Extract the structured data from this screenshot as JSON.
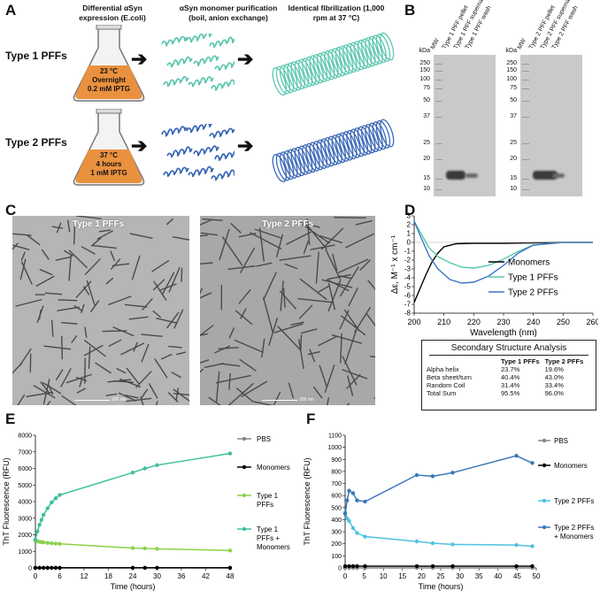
{
  "panels": {
    "A": "A",
    "B": "B",
    "C": "C",
    "D": "D",
    "E": "E",
    "F": "F"
  },
  "panelA": {
    "headers": [
      "Differential αSyn expression (E.coli)",
      "αSyn monomer purification (boil, anion exchange)",
      "Identical fibrilization (1,000 rpm at 37 °C)"
    ],
    "rows": [
      {
        "label": "Type 1 PFFs",
        "flask": [
          "23 °C",
          "Overnight",
          "0.2 mM IPTG"
        ],
        "color": "#5cc7b0"
      },
      {
        "label": "Type 2 PFFs",
        "flask": [
          "37 °C",
          "4 hours",
          "1 mM IPTG"
        ],
        "color": "#3a67b6"
      }
    ]
  },
  "panelB": {
    "kda_label": "kDa",
    "ladder": [
      "250",
      "150",
      "100",
      "75",
      "50",
      "37",
      "25",
      "20",
      "15",
      "10"
    ],
    "gel1_lanes": [
      "MW",
      "Type 1 PFF pellet",
      "Type 1 PFF supernatant",
      "Type 1 PFF wash"
    ],
    "gel2_lanes": [
      "MW",
      "Type 2 PFF pellet",
      "Type 2 PFF supernatant",
      "Type 2 PFF wash"
    ]
  },
  "panelC": {
    "left_label": "Type 1 PFFs",
    "right_label": "Type 2 PFFs",
    "scale": "200 nm"
  },
  "panelD": {
    "chart_data": {
      "type": "line",
      "xlabel": "Wavelength (nm)",
      "ylabel": "Δε, M⁻¹ x cm⁻¹",
      "xlim": [
        200,
        260
      ],
      "ylim": [
        -8,
        3
      ],
      "xticks": [
        "200",
        "210",
        "220",
        "230",
        "240",
        "250",
        "260"
      ],
      "yticks": [
        "3",
        "2",
        "1",
        "0",
        "-1",
        "-2",
        "-3",
        "-4",
        "-5",
        "-6",
        "-7",
        "-8"
      ],
      "series": [
        {
          "name": "Monomers",
          "color": "#000000",
          "x": [
            200,
            202,
            204,
            206,
            208,
            210,
            214,
            220,
            230,
            240,
            250,
            260
          ],
          "y": [
            -6.8,
            -5.2,
            -3.6,
            -2.2,
            -1.2,
            -0.5,
            -0.15,
            -0.1,
            -0.1,
            -0.05,
            0,
            0
          ]
        },
        {
          "name": "Type 1 PFFs",
          "color": "#5cc7b0",
          "x": [
            200,
            202,
            205,
            208,
            212,
            216,
            220,
            225,
            230,
            235,
            240,
            250,
            260
          ],
          "y": [
            2.4,
            1.2,
            -0.6,
            -1.6,
            -2.3,
            -2.8,
            -2.9,
            -2.6,
            -1.9,
            -1.0,
            -0.3,
            0,
            0
          ]
        },
        {
          "name": "Type 2 PFFs",
          "color": "#3a77c3",
          "x": [
            200,
            202,
            205,
            208,
            212,
            216,
            220,
            225,
            230,
            235,
            240,
            250,
            260
          ],
          "y": [
            2.4,
            0.8,
            -1.5,
            -3.0,
            -4.2,
            -4.6,
            -4.5,
            -3.8,
            -2.6,
            -1.2,
            -0.3,
            0,
            0
          ]
        }
      ]
    },
    "table": {
      "title": "Secondary Structure Analysis",
      "cols": [
        "",
        "Type 1 PFFs",
        "Type 2 PFFs"
      ],
      "rows": [
        [
          "Alpha helix",
          "23.7%",
          "19.6%"
        ],
        [
          "Beta sheet/turn",
          "40.4%",
          "43.0%"
        ],
        [
          "Random Coil",
          "31.4%",
          "33.4%"
        ],
        [
          "Total Sum",
          "95.5%",
          "96.0%"
        ]
      ]
    }
  },
  "panelE": {
    "chart_data": {
      "type": "line",
      "xlabel": "Time (hours)",
      "ylabel": "ThT Fluorescence (RFU)",
      "xlim": [
        0,
        48
      ],
      "ylim": [
        0,
        8000
      ],
      "xticks": [
        "0",
        "6",
        "12",
        "18",
        "24",
        "30",
        "36",
        "42",
        "48"
      ],
      "yticks": [
        "0",
        "1000",
        "2000",
        "3000",
        "4000",
        "5000",
        "6000",
        "7000",
        "8000"
      ],
      "series": [
        {
          "name": "PBS",
          "color": "#888888",
          "x": [
            0,
            1,
            2,
            3,
            4,
            5,
            6,
            24,
            27,
            30,
            48
          ],
          "y": [
            0,
            0,
            0,
            0,
            0,
            0,
            0,
            0,
            0,
            0,
            0
          ]
        },
        {
          "name": "Monomers",
          "color": "#000000",
          "x": [
            0,
            1,
            2,
            3,
            4,
            5,
            6,
            24,
            27,
            30,
            48
          ],
          "y": [
            10,
            10,
            10,
            10,
            10,
            10,
            10,
            10,
            10,
            10,
            10
          ]
        },
        {
          "name": "Type 1 PFFs",
          "color": "#8cd14a",
          "x": [
            0,
            0.5,
            1,
            1.5,
            2,
            3,
            4,
            5,
            6,
            24,
            27,
            30,
            48
          ],
          "y": [
            1650,
            1600,
            1580,
            1560,
            1540,
            1510,
            1490,
            1470,
            1450,
            1200,
            1180,
            1150,
            1050
          ]
        },
        {
          "name": "Type 1 PFFs + Monomers",
          "color": "#3fbf9f",
          "x": [
            0,
            0.5,
            1,
            1.5,
            2,
            3,
            4,
            5,
            6,
            24,
            27,
            30,
            48
          ],
          "y": [
            1700,
            2200,
            2600,
            2900,
            3200,
            3600,
            3950,
            4200,
            4400,
            5750,
            6000,
            6200,
            6900
          ]
        }
      ]
    },
    "legend": [
      [
        "PBS"
      ],
      [
        "Monomers"
      ],
      [
        "Type 1",
        "PFFs"
      ],
      [
        "Type 1",
        "PFFs +",
        "Monomers"
      ]
    ]
  },
  "panelF": {
    "chart_data": {
      "type": "line",
      "xlabel": "Time (hours)",
      "ylabel": "ThT Fluorescence (RFU)",
      "xlim": [
        0,
        48
      ],
      "ylim": [
        0,
        1100
      ],
      "xticks": [
        "0",
        "5",
        "10",
        "15",
        "20",
        "25",
        "30",
        "35",
        "40",
        "45",
        "50"
      ],
      "yticks": [
        "0",
        "100",
        "200",
        "300",
        "400",
        "500",
        "600",
        "700",
        "800",
        "900",
        "1000",
        "1100"
      ],
      "series": [
        {
          "name": "PBS",
          "color": "#888888",
          "x": [
            0,
            1,
            2,
            3,
            5,
            18,
            22,
            27,
            43,
            47
          ],
          "y": [
            0,
            0,
            0,
            0,
            0,
            0,
            0,
            0,
            0,
            0
          ]
        },
        {
          "name": "Monomers",
          "color": "#000000",
          "x": [
            0,
            1,
            2,
            3,
            5,
            18,
            22,
            27,
            43,
            47
          ],
          "y": [
            15,
            15,
            15,
            15,
            15,
            15,
            15,
            15,
            15,
            15
          ]
        },
        {
          "name": "Type 2 PFFs",
          "color": "#4fc3e0",
          "x": [
            0,
            0.5,
            1,
            2,
            3,
            5,
            18,
            22,
            27,
            43,
            47
          ],
          "y": [
            460,
            410,
            390,
            330,
            290,
            260,
            220,
            205,
            195,
            190,
            180
          ]
        },
        {
          "name": "Type 2 PFFs + Monomers",
          "color": "#3a77b8",
          "x": [
            0,
            0.5,
            1,
            2,
            3,
            5,
            18,
            22,
            27,
            43,
            47
          ],
          "y": [
            450,
            560,
            640,
            620,
            560,
            550,
            770,
            760,
            790,
            930,
            870
          ]
        }
      ]
    },
    "legend": [
      [
        "PBS"
      ],
      [
        "Monomers"
      ],
      [
        "Type 2 PFFs"
      ],
      [
        "Type 2 PFFs",
        "+ Monomers"
      ]
    ]
  }
}
